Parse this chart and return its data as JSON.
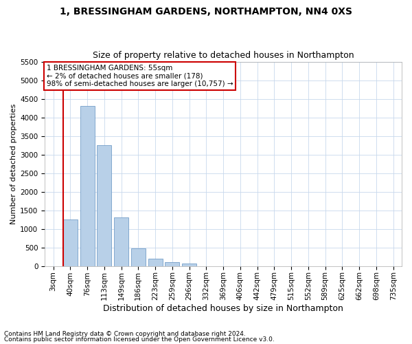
{
  "title1": "1, BRESSINGHAM GARDENS, NORTHAMPTON, NN4 0XS",
  "title2": "Size of property relative to detached houses in Northampton",
  "xlabel": "Distribution of detached houses by size in Northampton",
  "ylabel": "Number of detached properties",
  "categories": [
    "3sqm",
    "40sqm",
    "76sqm",
    "113sqm",
    "149sqm",
    "186sqm",
    "223sqm",
    "259sqm",
    "296sqm",
    "332sqm",
    "369sqm",
    "406sqm",
    "442sqm",
    "479sqm",
    "515sqm",
    "552sqm",
    "589sqm",
    "625sqm",
    "662sqm",
    "698sqm",
    "735sqm"
  ],
  "values": [
    0,
    1250,
    4300,
    3250,
    1300,
    480,
    200,
    100,
    60,
    0,
    0,
    0,
    0,
    0,
    0,
    0,
    0,
    0,
    0,
    0,
    0
  ],
  "bar_color": "#b8d0e8",
  "bar_edge_color": "#6090c0",
  "annotation_title": "1 BRESSINGHAM GARDENS: 55sqm",
  "annotation_line1": "← 2% of detached houses are smaller (178)",
  "annotation_line2": "98% of semi-detached houses are larger (10,757) →",
  "annotation_box_color": "#ffffff",
  "annotation_box_edge": "#cc0000",
  "vline_color": "#cc0000",
  "footer1": "Contains HM Land Registry data © Crown copyright and database right 2024.",
  "footer2": "Contains public sector information licensed under the Open Government Licence v3.0.",
  "ylim": [
    0,
    5500
  ],
  "yticks": [
    0,
    500,
    1000,
    1500,
    2000,
    2500,
    3000,
    3500,
    4000,
    4500,
    5000,
    5500
  ],
  "title1_fontsize": 10,
  "title2_fontsize": 9,
  "xlabel_fontsize": 9,
  "ylabel_fontsize": 8,
  "tick_fontsize": 7.5,
  "annot_fontsize": 7.5,
  "footer_fontsize": 6.5,
  "bg_color": "#ffffff",
  "grid_color": "#c8d8ec"
}
